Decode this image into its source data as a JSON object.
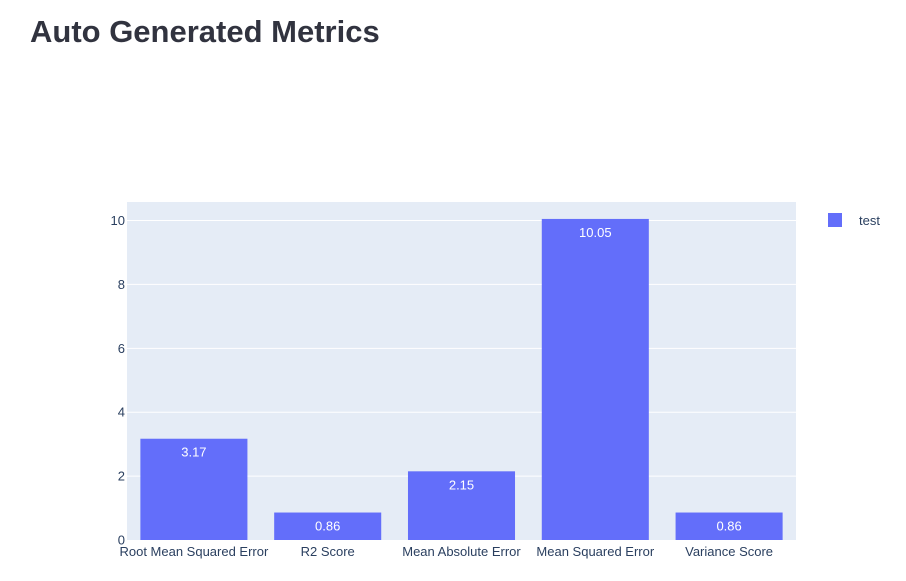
{
  "page": {
    "title": "Auto Generated Metrics"
  },
  "chart_data": {
    "type": "bar",
    "categories": [
      "Root Mean Squared Error",
      "R2 Score",
      "Mean Absolute Error",
      "Mean Squared Error",
      "Variance Score"
    ],
    "series": [
      {
        "name": "test",
        "values": [
          3.17,
          0.86,
          2.15,
          10.05,
          0.86
        ],
        "labels": [
          "3.17",
          "0.86",
          "2.15",
          "10.05",
          "0.86"
        ]
      }
    ],
    "yticks": [
      0,
      2,
      4,
      6,
      8,
      10
    ],
    "ylim": [
      0,
      10.58
    ],
    "grid": true,
    "legend": "top-right",
    "colors": {
      "bar": "#636efa",
      "plot_bg": "#e5ecf6",
      "grid": "#ffffff",
      "text": "#2a3f5f",
      "bar_label": "#ffffff"
    }
  }
}
